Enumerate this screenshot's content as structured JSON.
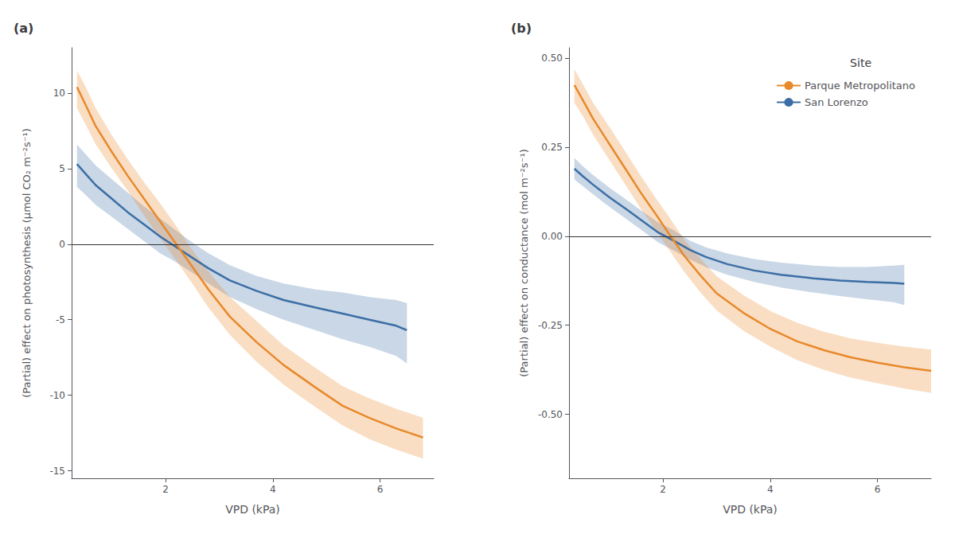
{
  "chart_data": [
    {
      "type": "line",
      "title": "(a)",
      "xlabel": "VPD (kPa)",
      "ylabel": "(Partial) effect on photosynthesis (μmol CO₂ m⁻²s⁻¹)",
      "xlim": [
        0.25,
        7.0
      ],
      "ylim": [
        -15.5,
        13.0
      ],
      "xticks": [
        2,
        4,
        6
      ],
      "yticks": [
        -15,
        -10,
        -5,
        0,
        5,
        10
      ],
      "grid": false,
      "reference_line_y": 0,
      "series": [
        {
          "color": "#E8892B",
          "x": [
            0.35,
            0.5,
            0.7,
            1.0,
            1.3,
            1.6,
            1.9,
            2.2,
            2.5,
            2.8,
            3.2,
            3.7,
            4.2,
            4.8,
            5.3,
            5.8,
            6.3,
            6.8
          ],
          "values": [
            10.4,
            9.3,
            7.8,
            6.1,
            4.5,
            3.0,
            1.5,
            0.0,
            -1.5,
            -3.0,
            -4.8,
            -6.5,
            -8.0,
            -9.5,
            -10.7,
            -11.5,
            -12.2,
            -12.8
          ],
          "ci_low": [
            9.0,
            8.0,
            6.6,
            5.0,
            3.5,
            1.9,
            0.4,
            -1.1,
            -2.6,
            -4.2,
            -6.0,
            -7.8,
            -9.3,
            -10.8,
            -12.0,
            -12.9,
            -13.6,
            -14.2
          ],
          "ci_high": [
            11.5,
            10.5,
            9.0,
            7.2,
            5.6,
            4.1,
            2.7,
            1.2,
            -0.4,
            -1.8,
            -3.5,
            -5.1,
            -6.7,
            -8.2,
            -9.4,
            -10.2,
            -10.9,
            -11.5
          ]
        },
        {
          "color": "#3C6EA5",
          "x": [
            0.35,
            0.5,
            0.7,
            1.0,
            1.3,
            1.6,
            1.9,
            2.2,
            2.5,
            2.8,
            3.2,
            3.7,
            4.2,
            4.8,
            5.3,
            5.8,
            6.3,
            6.5
          ],
          "values": [
            5.3,
            4.7,
            3.9,
            3.0,
            2.1,
            1.3,
            0.5,
            -0.2,
            -0.9,
            -1.6,
            -2.4,
            -3.1,
            -3.7,
            -4.2,
            -4.6,
            -5.0,
            -5.4,
            -5.7
          ],
          "ci_low": [
            3.8,
            3.3,
            2.6,
            1.8,
            1.0,
            0.2,
            -0.6,
            -1.2,
            -1.9,
            -2.6,
            -3.5,
            -4.3,
            -5.0,
            -5.7,
            -6.3,
            -6.8,
            -7.4,
            -7.9
          ],
          "ci_high": [
            6.6,
            6.0,
            5.2,
            4.3,
            3.4,
            2.5,
            1.7,
            0.9,
            0.1,
            -0.6,
            -1.4,
            -2.1,
            -2.6,
            -3.0,
            -3.2,
            -3.5,
            -3.7,
            -3.9
          ]
        }
      ]
    },
    {
      "type": "line",
      "title": "(b)",
      "xlabel": "VPD (kPa)",
      "ylabel": "(Partial) effect on conductance (mol m⁻²s⁻¹)",
      "xlim": [
        0.25,
        7.0
      ],
      "ylim": [
        -0.68,
        0.53
      ],
      "xticks": [
        2,
        4,
        6
      ],
      "yticks": [
        {
          "value": -0.5,
          "label": "-0.50"
        },
        -0.25,
        {
          "value": 0,
          "label": "0.00"
        },
        0.25,
        {
          "value": 0.5,
          "label": "0.50"
        }
      ],
      "grid": false,
      "reference_line_y": 0,
      "legend": "upper right",
      "legend_title": "Site",
      "series": [
        {
          "name": "Parque Metropolitano",
          "color": "#E8892B",
          "x": [
            0.35,
            0.5,
            0.7,
            1.0,
            1.3,
            1.6,
            1.9,
            2.1,
            2.4,
            2.7,
            3.0,
            3.5,
            4.0,
            4.5,
            5.0,
            5.5,
            6.0,
            6.5,
            7.0
          ],
          "values": [
            0.425,
            0.385,
            0.33,
            0.26,
            0.19,
            0.12,
            0.055,
            0.01,
            -0.055,
            -0.11,
            -0.16,
            -0.215,
            -0.26,
            -0.295,
            -0.32,
            -0.34,
            -0.355,
            -0.368,
            -0.378
          ],
          "ci_low": [
            0.375,
            0.34,
            0.285,
            0.215,
            0.145,
            0.075,
            0.01,
            -0.035,
            -0.1,
            -0.158,
            -0.208,
            -0.265,
            -0.31,
            -0.348,
            -0.375,
            -0.397,
            -0.413,
            -0.428,
            -0.44
          ],
          "ci_high": [
            0.47,
            0.43,
            0.375,
            0.308,
            0.238,
            0.167,
            0.1,
            0.058,
            -0.01,
            -0.062,
            -0.112,
            -0.165,
            -0.21,
            -0.243,
            -0.268,
            -0.287,
            -0.299,
            -0.31,
            -0.318
          ]
        },
        {
          "name": "San Lorenzo",
          "color": "#3C6EA5",
          "x": [
            0.35,
            0.5,
            0.7,
            1.0,
            1.3,
            1.6,
            1.9,
            2.2,
            2.5,
            2.8,
            3.2,
            3.7,
            4.2,
            4.8,
            5.3,
            5.8,
            6.3,
            6.5
          ],
          "values": [
            0.19,
            0.17,
            0.145,
            0.11,
            0.078,
            0.045,
            0.012,
            -0.012,
            -0.038,
            -0.058,
            -0.078,
            -0.096,
            -0.108,
            -0.118,
            -0.124,
            -0.128,
            -0.131,
            -0.133
          ],
          "ci_low": [
            0.16,
            0.142,
            0.118,
            0.083,
            0.051,
            0.018,
            -0.016,
            -0.04,
            -0.065,
            -0.086,
            -0.108,
            -0.128,
            -0.144,
            -0.158,
            -0.168,
            -0.177,
            -0.185,
            -0.193
          ],
          "ci_high": [
            0.22,
            0.198,
            0.172,
            0.137,
            0.105,
            0.072,
            0.04,
            0.017,
            -0.012,
            -0.031,
            -0.048,
            -0.064,
            -0.074,
            -0.082,
            -0.086,
            -0.086,
            -0.082,
            -0.08
          ]
        }
      ]
    }
  ]
}
